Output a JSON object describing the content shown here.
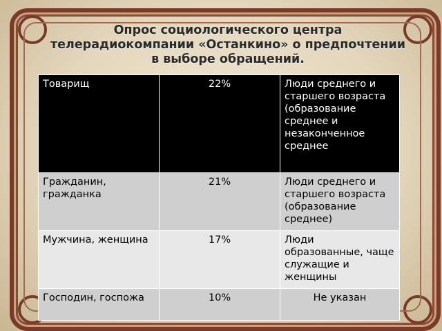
{
  "title_lines": [
    "Опрос социологического центра",
    "телерадиокомпании «Останкино» о предпочтении",
    "в выборе обращений."
  ],
  "rows": [
    {
      "address": "Товарищ",
      "percent": "22%",
      "group": "Люди среднего и старшего возраста (образование среднее и незаконченное среднее"
    },
    {
      "address": "Гражданин, гражданка",
      "percent": "21%",
      "group": "Люди среднего и старшего возраста  (образование среднее)"
    },
    {
      "address": "Мужчина, женщина",
      "percent": "17%",
      "group": "Люди образованные, чаще служащие и женщины"
    },
    {
      "address": "Господин, госпожа",
      "percent": "10%",
      "group": "Не указан"
    }
  ]
}
